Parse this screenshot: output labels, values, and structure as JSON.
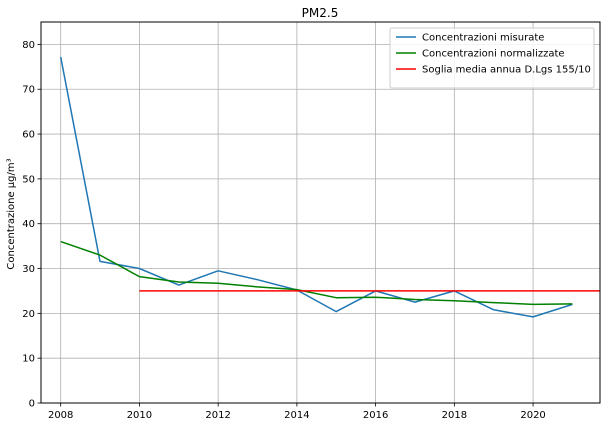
{
  "chart_data": {
    "type": "line",
    "title": "PM2.5",
    "xlabel": "",
    "ylabel": "Concentrazione µg/m³",
    "xlim": [
      2007.5,
      2021.7
    ],
    "ylim": [
      0,
      85
    ],
    "xticks": [
      2008,
      2010,
      2012,
      2014,
      2016,
      2018,
      2020
    ],
    "yticks": [
      0,
      10,
      20,
      30,
      40,
      50,
      60,
      70,
      80
    ],
    "grid": true,
    "legend_position": "top-right",
    "series": [
      {
        "name": "Concentrazioni misurate",
        "color": "#1f77b4",
        "x": [
          2008,
          2009,
          2010,
          2011,
          2012,
          2013,
          2014,
          2015,
          2016,
          2017,
          2018,
          2019,
          2020,
          2021
        ],
        "y": [
          77.2,
          31.6,
          30.0,
          26.3,
          29.5,
          27.5,
          25.2,
          20.4,
          25.0,
          22.5,
          25.0,
          20.8,
          19.2,
          22.0
        ]
      },
      {
        "name": "Concentrazioni normalizzate",
        "color": "#008000",
        "x": [
          2008,
          2009,
          2010,
          2011,
          2012,
          2013,
          2014,
          2015,
          2016,
          2017,
          2018,
          2019,
          2020,
          2021
        ],
        "y": [
          36.0,
          33.0,
          28.2,
          27.0,
          26.7,
          25.9,
          25.3,
          23.5,
          23.6,
          23.1,
          22.8,
          22.4,
          22.0,
          22.1
        ]
      },
      {
        "name": "Soglia media annua D.Lgs 155/10",
        "color": "#ff0000",
        "x": [
          2010,
          2021.7
        ],
        "y": [
          25,
          25
        ]
      }
    ]
  }
}
